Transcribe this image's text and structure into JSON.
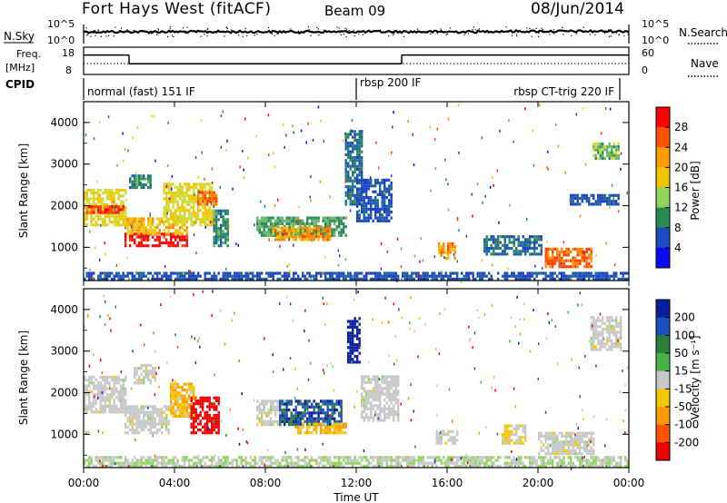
{
  "header": {
    "site": "Fort Hays West (fitACF)",
    "beam": "Beam 09",
    "date": "08/Jun/2014"
  },
  "nsky_panel": {
    "left_label": "N.Sky",
    "right_label": "N.Search",
    "left_ticks": [
      "10^5",
      "10^0"
    ],
    "right_ticks": [
      "10^5",
      "10^0"
    ]
  },
  "freq_panel": {
    "left_label_line1": "Freq.",
    "left_label_line2": "[MHz]",
    "right_label": "Nave",
    "left_ticks": [
      "18",
      "8"
    ],
    "right_ticks": [
      "60",
      "0"
    ],
    "freq_steps": [
      {
        "t0": 0,
        "t1": 2,
        "mhz": 16
      },
      {
        "t0": 2,
        "t1": 14,
        "mhz": 11.5
      },
      {
        "t0": 14,
        "t1": 24,
        "mhz": 16
      }
    ]
  },
  "cpid_panel": {
    "label": "CPID",
    "modes": [
      {
        "start": 0,
        "name": "normal (fast) 151 IF"
      },
      {
        "start": 12,
        "name": "rbsp 200 IF"
      },
      {
        "start": 23.7,
        "name": "rbsp CT-trig 220 IF"
      }
    ]
  },
  "x_axis": {
    "label": "Time UT",
    "ticks": [
      "00:00",
      "04:00",
      "08:00",
      "12:00",
      "16:00",
      "20:00",
      "00:00"
    ]
  },
  "power_panel": {
    "ylabel": "Slant Range [km]",
    "yticks": [
      "4000",
      "3000",
      "2000",
      "1000"
    ],
    "colorbar_label": "Power [dB]",
    "colorbar_ticks": [
      "28",
      "24",
      "20",
      "16",
      "12",
      "8",
      "4"
    ],
    "colors": [
      "#ff0000",
      "#ff4000",
      "#ff8a00",
      "#f2c400",
      "#c8e03c",
      "#6ab36a",
      "#2a8a55",
      "#1a60a0",
      "#1a3cc8",
      "#0b0bf0"
    ]
  },
  "velocity_panel": {
    "ylabel": "Slant Range [km]",
    "yticks": [
      "4000",
      "3000",
      "2000",
      "1000"
    ],
    "colorbar_label": "Velocity [m s⁻¹]",
    "colorbar_ticks": [
      "200",
      "100",
      "50",
      "15",
      "-15",
      "-50",
      "-100",
      "-200"
    ],
    "colors": [
      "#0b1ea0",
      "#1a50c0",
      "#2a7f3c",
      "#46b446",
      "#8ed45c",
      "#c8c8c8",
      "#c8c8c8",
      "#f2c800",
      "#ff9b00",
      "#ff6400",
      "#ff0000",
      "#ee0000"
    ]
  },
  "chart_data": {
    "type": "heatmap",
    "x_unit": "hours UT",
    "xlim": [
      0,
      24
    ],
    "ylim_km": [
      200,
      4500
    ],
    "panels": [
      {
        "name": "Power [dB]",
        "range": [
          0,
          30
        ],
        "regions": [
          {
            "t0": 0.0,
            "t1": 1.9,
            "r0": 1500,
            "r1": 2400,
            "val": 18
          },
          {
            "t0": 0.1,
            "t1": 1.8,
            "r0": 1800,
            "r1": 2000,
            "val": 26
          },
          {
            "t0": 1.8,
            "t1": 4.6,
            "r0": 1000,
            "r1": 1350,
            "val": 29
          },
          {
            "t0": 1.9,
            "t1": 4.6,
            "r0": 1300,
            "r1": 1700,
            "val": 20
          },
          {
            "t0": 2.0,
            "t1": 3.0,
            "r0": 2400,
            "r1": 2700,
            "val": 10
          },
          {
            "t0": 3.5,
            "t1": 5.6,
            "r0": 1500,
            "r1": 2500,
            "val": 18
          },
          {
            "t0": 5.0,
            "t1": 5.8,
            "r0": 2000,
            "r1": 2300,
            "val": 24
          },
          {
            "t0": 5.7,
            "t1": 6.3,
            "r0": 1000,
            "r1": 1900,
            "val": 10
          },
          {
            "t0": 7.6,
            "t1": 11.5,
            "r0": 1250,
            "r1": 1700,
            "val": 12
          },
          {
            "t0": 8.3,
            "t1": 10.8,
            "r0": 1150,
            "r1": 1500,
            "val": 22
          },
          {
            "t0": 11.5,
            "t1": 12.2,
            "r0": 2000,
            "r1": 3800,
            "val": 8
          },
          {
            "t0": 12.0,
            "t1": 13.5,
            "r0": 1600,
            "r1": 2600,
            "val": 6
          },
          {
            "t0": 15.6,
            "t1": 16.4,
            "r0": 700,
            "r1": 1100,
            "val": 22
          },
          {
            "t0": 17.6,
            "t1": 20.2,
            "r0": 800,
            "r1": 1250,
            "val": 8
          },
          {
            "t0": 20.3,
            "t1": 22.4,
            "r0": 500,
            "r1": 950,
            "val": 24
          },
          {
            "t0": 21.4,
            "t1": 23.6,
            "r0": 2000,
            "r1": 2250,
            "val": 6
          },
          {
            "t0": 22.4,
            "t1": 23.6,
            "r0": 3100,
            "r1": 3500,
            "val": 14
          },
          {
            "t0": 0.0,
            "t1": 24.0,
            "r0": 200,
            "r1": 400,
            "val": 6
          }
        ]
      },
      {
        "name": "Velocity [m s-1]",
        "range": [
          -200,
          200
        ],
        "regions": [
          {
            "t0": 0.0,
            "t1": 1.9,
            "r0": 1500,
            "r1": 2400,
            "val": 0
          },
          {
            "t0": 1.8,
            "t1": 3.8,
            "r0": 1000,
            "r1": 1700,
            "val": 0
          },
          {
            "t0": 2.2,
            "t1": 3.2,
            "r0": 2200,
            "r1": 2650,
            "val": 0
          },
          {
            "t0": 3.8,
            "t1": 4.8,
            "r0": 1400,
            "r1": 2200,
            "val": -60
          },
          {
            "t0": 4.7,
            "t1": 5.9,
            "r0": 1000,
            "r1": 1850,
            "val": -220
          },
          {
            "t0": 7.6,
            "t1": 8.8,
            "r0": 1200,
            "r1": 1800,
            "val": 0
          },
          {
            "t0": 8.6,
            "t1": 11.3,
            "r0": 1200,
            "r1": 1800,
            "val": 150
          },
          {
            "t0": 9.3,
            "t1": 11.5,
            "r0": 1000,
            "r1": 1250,
            "val": -60
          },
          {
            "t0": 11.6,
            "t1": 12.1,
            "r0": 2700,
            "r1": 3800,
            "val": 220
          },
          {
            "t0": 12.2,
            "t1": 13.8,
            "r0": 1300,
            "r1": 2400,
            "val": 0
          },
          {
            "t0": 15.5,
            "t1": 16.5,
            "r0": 750,
            "r1": 1100,
            "val": 0
          },
          {
            "t0": 18.4,
            "t1": 19.5,
            "r0": 750,
            "r1": 1200,
            "val": -30
          },
          {
            "t0": 20.0,
            "t1": 22.5,
            "r0": 500,
            "r1": 1000,
            "val": 0
          },
          {
            "t0": 22.3,
            "t1": 23.7,
            "r0": 3000,
            "r1": 3800,
            "val": 0
          },
          {
            "t0": 0.0,
            "t1": 24.0,
            "r0": 200,
            "r1": 450,
            "val": 30
          }
        ]
      }
    ]
  }
}
